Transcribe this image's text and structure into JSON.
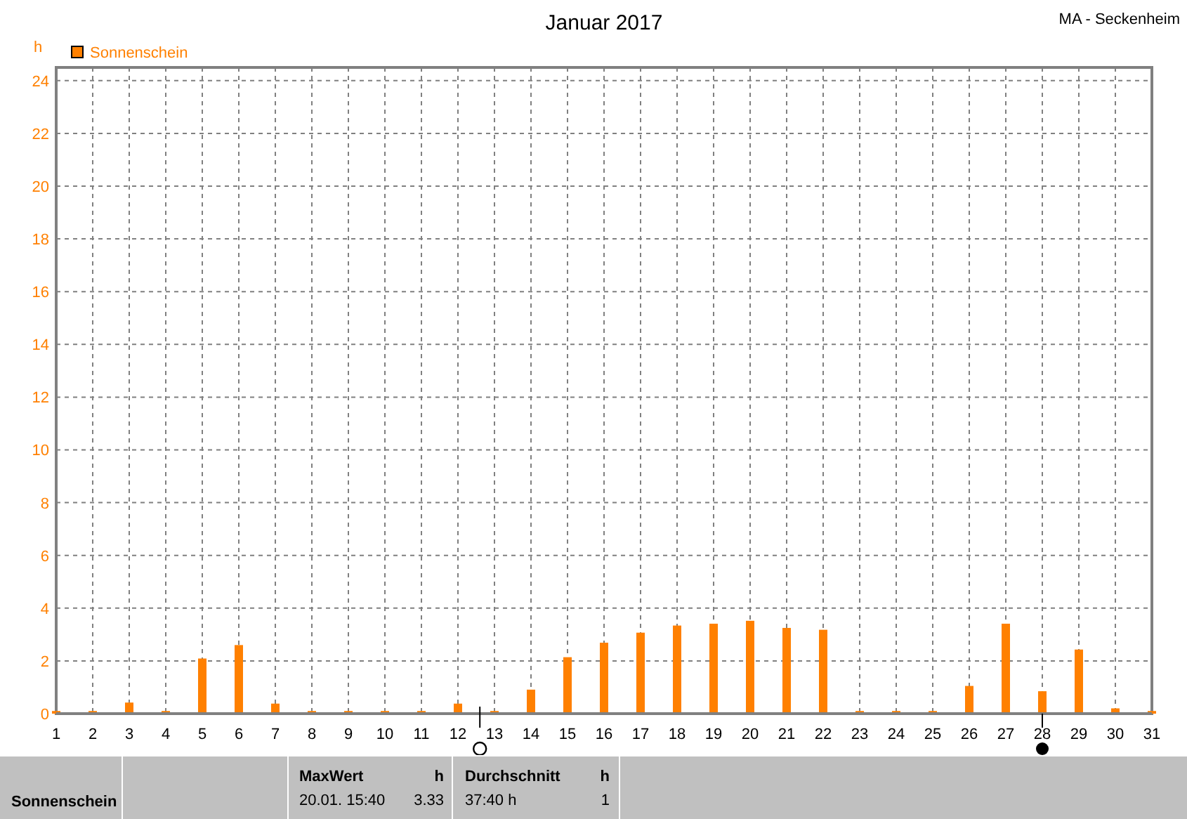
{
  "chart_data": {
    "type": "bar",
    "title": "Januar 2017",
    "subtitle": "MA - Seckenheim",
    "ylabel": "h",
    "x": [
      1,
      2,
      3,
      4,
      5,
      6,
      7,
      8,
      9,
      10,
      11,
      12,
      13,
      14,
      15,
      16,
      17,
      18,
      19,
      20,
      21,
      22,
      23,
      24,
      25,
      26,
      27,
      28,
      29,
      30,
      31
    ],
    "series": [
      {
        "name": "Sonnenschein",
        "color": "#ff8000",
        "values": [
          0.1,
          0.1,
          0.42,
          0.1,
          2.09,
          2.6,
          0.38,
          0.1,
          0.1,
          0.1,
          0.1,
          0.38,
          0.1,
          0.91,
          2.14,
          2.69,
          3.07,
          3.34,
          3.41,
          3.52,
          3.25,
          3.18,
          0.1,
          0.1,
          0.1,
          1.05,
          3.41,
          0.85,
          2.43,
          0.2,
          0.1
        ]
      }
    ],
    "xlim": [
      1,
      31
    ],
    "xticks": [
      1,
      2,
      3,
      4,
      5,
      6,
      7,
      8,
      9,
      10,
      11,
      12,
      13,
      14,
      15,
      16,
      17,
      18,
      19,
      20,
      21,
      22,
      23,
      24,
      25,
      26,
      27,
      28,
      29,
      30,
      31
    ],
    "ylim": [
      0,
      24.5
    ],
    "yticks": [
      0,
      2,
      4,
      6,
      8,
      10,
      12,
      14,
      16,
      18,
      20,
      22,
      24
    ],
    "grid": true,
    "legend": "top left",
    "annotations": [
      "Sonnenschein",
      "MaxWert",
      "h",
      "20.01.  15:40",
      "3.33",
      "Durchschnitt",
      "h",
      "37:40 h",
      "1"
    ]
  }
}
